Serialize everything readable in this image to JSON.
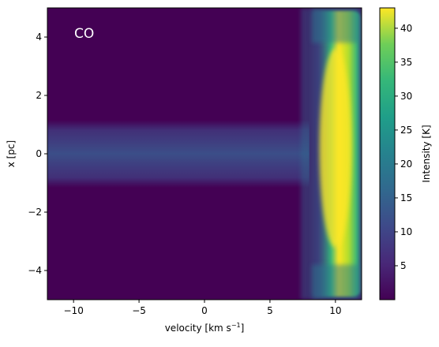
{
  "chart_data": {
    "type": "heatmap",
    "panel_label": "CO",
    "xlabel": "velocity [km s",
    "xlabel_superscript": "−1",
    "xlabel_suffix": "]",
    "ylabel": "x [pc]",
    "xlim": [
      -12,
      12
    ],
    "ylim": [
      -5,
      5
    ],
    "x_ticks": [
      -10,
      -5,
      0,
      5,
      10
    ],
    "x_tick_labels": [
      "−10",
      "−5",
      "0",
      "5",
      "10"
    ],
    "y_ticks": [
      4,
      2,
      0,
      -2,
      -4
    ],
    "y_tick_labels": [
      "4",
      "2",
      "0",
      "−2",
      "−4"
    ],
    "colorbar": {
      "label": "Intensity [K]",
      "range": [
        0,
        43
      ],
      "ticks": [
        5,
        10,
        15,
        20,
        25,
        30,
        35,
        40
      ],
      "tick_labels": [
        "5",
        "10",
        "15",
        "20",
        "25",
        "30",
        "35",
        "40"
      ],
      "colormap": "viridis"
    },
    "features": {
      "bright_ridge": {
        "velocity_center": 10,
        "velocity_width": 1.8,
        "x_range": [
          -5,
          5
        ],
        "peak_intensity": 42,
        "center_intensity": 40,
        "edge_intensity": 20
      },
      "horizontal_band": {
        "velocity_range": [
          -12,
          8
        ],
        "x_range": [
          -1,
          1
        ],
        "intensity": 10
      },
      "background_intensity": 0.5
    }
  }
}
